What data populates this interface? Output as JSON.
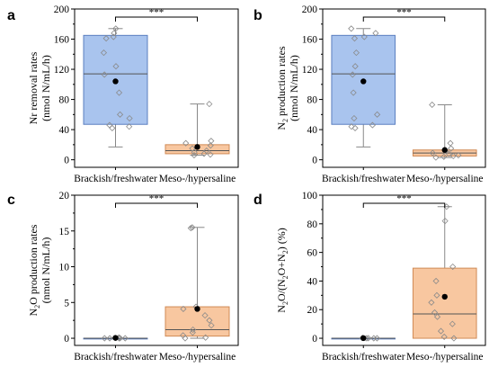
{
  "chart_data": [
    {
      "panel": "a",
      "type": "box",
      "ylabel": "Nr removal rates",
      "yunit": "(nmol N/mL/h)",
      "ylim": [
        -10,
        200
      ],
      "yticks": [
        "0",
        "40",
        "80",
        "120",
        "160",
        "200"
      ],
      "categories": [
        "Brackish/freshwater",
        "Meso-/hypersaline"
      ],
      "significance": "***",
      "colors": {
        "box1": "#a9c4ee",
        "box2": "#f8c7a0",
        "stroke": "#000000"
      },
      "boxes": [
        {
          "whisker_low": 17,
          "q1": 47,
          "median": 114,
          "q3": 165,
          "whisker_high": 174,
          "mean": 104,
          "points": [
            174,
            168,
            163,
            161,
            142,
            124,
            113,
            89,
            60,
            55,
            46,
            44,
            42
          ]
        },
        {
          "whisker_low": 6,
          "q1": 8,
          "median": 12,
          "q3": 20,
          "whisker_high": 74,
          "mean": 17,
          "points": [
            74,
            25,
            22,
            19,
            15,
            12,
            10,
            8,
            7,
            6
          ]
        }
      ]
    },
    {
      "panel": "b",
      "type": "box",
      "ylabel": "N₂ production rates",
      "yunit": "(nmol N/mL/h)",
      "ylim": [
        -10,
        200
      ],
      "yticks": [
        "0",
        "40",
        "80",
        "120",
        "160",
        "200"
      ],
      "categories": [
        "Brackish/freshwater",
        "Meso-/hypersaline"
      ],
      "significance": "***",
      "colors": {
        "box1": "#a9c4ee",
        "box2": "#f8c7a0",
        "stroke": "#000000"
      },
      "boxes": [
        {
          "whisker_low": 17,
          "q1": 47,
          "median": 114,
          "q3": 165,
          "whisker_high": 174,
          "mean": 104,
          "points": [
            174,
            168,
            163,
            161,
            142,
            124,
            113,
            89,
            60,
            55,
            46,
            44,
            42
          ]
        },
        {
          "whisker_low": 3,
          "q1": 5,
          "median": 9,
          "q3": 13,
          "whisker_high": 73,
          "mean": 13,
          "points": [
            73,
            22,
            15,
            12,
            9,
            8,
            6,
            5,
            4,
            3
          ]
        }
      ]
    },
    {
      "panel": "c",
      "type": "box",
      "ylabel": "N₂O production rates",
      "yunit": "(nmol N/mL/h)",
      "ylim": [
        -1,
        20
      ],
      "yticks": [
        "0",
        "5",
        "10",
        "15",
        "20"
      ],
      "categories": [
        "Brackish/freshwater",
        "Meso-/hypersaline"
      ],
      "significance": "***",
      "colors": {
        "box1": "#a9c4ee",
        "box2": "#f8c7a0",
        "stroke": "#000000"
      },
      "boxes": [
        {
          "whisker_low": 0,
          "q1": 0,
          "median": 0,
          "q3": 0,
          "whisker_high": 0,
          "mean": 0.05,
          "points": [
            0.1,
            0.05,
            0.02,
            0,
            0,
            0,
            0
          ]
        },
        {
          "whisker_low": 0,
          "q1": 0.3,
          "median": 1.2,
          "q3": 4.4,
          "whisker_high": 15.5,
          "mean": 4.1,
          "points": [
            15.5,
            15.4,
            4.4,
            4.1,
            3.2,
            2.5,
            1.8,
            1.2,
            0.8,
            0.4,
            0.1,
            0
          ]
        }
      ]
    },
    {
      "panel": "d",
      "type": "box",
      "ylabel": "N₂O/(N₂O+N₂) (%)",
      "yunit": "",
      "ylim": [
        -5,
        100
      ],
      "yticks": [
        "0",
        "20",
        "40",
        "60",
        "80",
        "100"
      ],
      "categories": [
        "Brackish/freshwater",
        "Meso-/hypersaline"
      ],
      "significance": "***",
      "colors": {
        "box1": "#a9c4ee",
        "box2": "#f8c7a0",
        "stroke": "#000000"
      },
      "boxes": [
        {
          "whisker_low": 0,
          "q1": 0,
          "median": 0,
          "q3": 0,
          "whisker_high": 0,
          "mean": 0.1,
          "points": [
            0.3,
            0.2,
            0.1,
            0,
            0,
            0
          ]
        },
        {
          "whisker_low": 0,
          "q1": 0,
          "median": 17,
          "q3": 49,
          "whisker_high": 92,
          "mean": 29,
          "points": [
            92,
            82,
            50,
            40,
            30,
            25,
            18,
            15,
            10,
            5,
            1,
            0
          ]
        }
      ]
    }
  ]
}
